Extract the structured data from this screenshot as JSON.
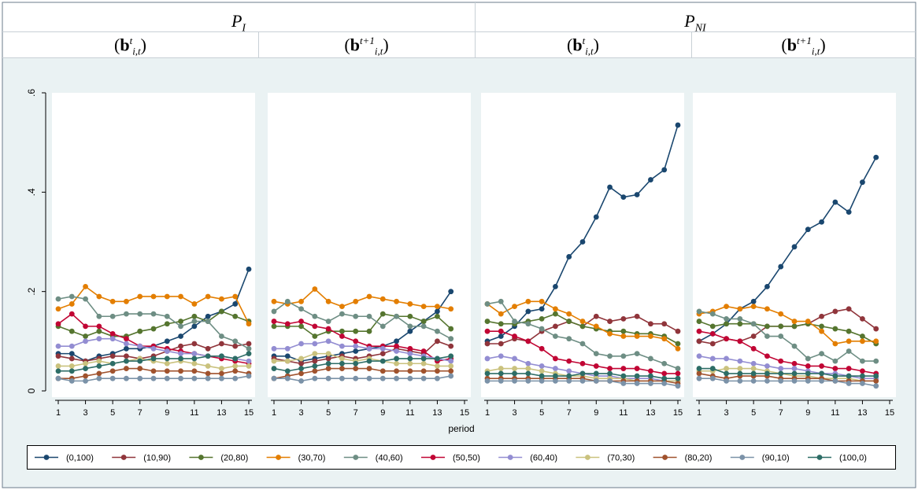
{
  "headers": {
    "groups": [
      {
        "main": "P",
        "sub": "I"
      },
      {
        "main": "P",
        "sub": "NI"
      }
    ],
    "panels": [
      {
        "sup": "t",
        "sub": "i,t"
      },
      {
        "sup": "t+1",
        "sub": "i,t"
      },
      {
        "sup": "t",
        "sub": "i,t"
      },
      {
        "sup": "t+1",
        "sub": "i,t"
      }
    ]
  },
  "chart_data": {
    "type": "line",
    "xlabel": "period",
    "ylabel": "",
    "ylim": [
      0,
      0.6
    ],
    "yticks": [
      0,
      0.2,
      0.4,
      0.6
    ],
    "ytick_labels": [
      "0",
      ".2",
      ".4",
      ".6"
    ],
    "xlim": [
      1,
      15
    ],
    "xticks": [
      1,
      3,
      5,
      7,
      9,
      11,
      13,
      15
    ],
    "legend_position": "bottom",
    "series_names": [
      "(0,100)",
      "(10,90)",
      "(20,80)",
      "(30,70)",
      "(40,60)",
      "(50,50)",
      "(60,40)",
      "(70,30)",
      "(80,20)",
      "(90,10)",
      "(100,0)"
    ],
    "series_colors": [
      "#1a476f",
      "#90353b",
      "#55752f",
      "#e37e00",
      "#6e8e84",
      "#c10534",
      "#938dd2",
      "#cac27e",
      "#a0522d",
      "#7b92a8",
      "#2d6d66"
    ],
    "panels": [
      {
        "name": "P_I (b^t_{i,t})",
        "series": [
          {
            "name": "(0,100)",
            "values": [
              0.075,
              0.075,
              0.06,
              0.07,
              0.075,
              0.085,
              0.085,
              0.09,
              0.1,
              0.11,
              0.13,
              0.15,
              0.16,
              0.175,
              0.245
            ]
          },
          {
            "name": "(10,90)",
            "values": [
              0.07,
              0.065,
              0.06,
              0.065,
              0.07,
              0.07,
              0.065,
              0.07,
              0.08,
              0.09,
              0.095,
              0.085,
              0.095,
              0.09,
              0.095
            ]
          },
          {
            "name": "(20,80)",
            "values": [
              0.13,
              0.12,
              0.11,
              0.12,
              0.11,
              0.11,
              0.12,
              0.125,
              0.135,
              0.14,
              0.15,
              0.14,
              0.16,
              0.15,
              0.14
            ]
          },
          {
            "name": "(30,70)",
            "values": [
              0.165,
              0.175,
              0.21,
              0.19,
              0.18,
              0.18,
              0.19,
              0.19,
              0.19,
              0.19,
              0.175,
              0.19,
              0.185,
              0.19,
              0.135
            ]
          },
          {
            "name": "(40,60)",
            "values": [
              0.185,
              0.19,
              0.185,
              0.15,
              0.15,
              0.155,
              0.155,
              0.155,
              0.15,
              0.13,
              0.14,
              0.14,
              0.11,
              0.1,
              0.085
            ]
          },
          {
            "name": "(50,50)",
            "values": [
              0.135,
              0.155,
              0.13,
              0.13,
              0.115,
              0.105,
              0.09,
              0.09,
              0.085,
              0.08,
              0.075,
              0.07,
              0.065,
              0.06,
              0.055
            ]
          },
          {
            "name": "(60,40)",
            "values": [
              0.09,
              0.09,
              0.1,
              0.105,
              0.105,
              0.095,
              0.09,
              0.085,
              0.08,
              0.075,
              0.075,
              0.07,
              0.07,
              0.065,
              0.06
            ]
          },
          {
            "name": "(70,30)",
            "values": [
              0.05,
              0.05,
              0.055,
              0.06,
              0.055,
              0.06,
              0.065,
              0.06,
              0.055,
              0.06,
              0.055,
              0.05,
              0.045,
              0.05,
              0.05
            ]
          },
          {
            "name": "(80,20)",
            "values": [
              0.025,
              0.025,
              0.03,
              0.035,
              0.04,
              0.045,
              0.045,
              0.04,
              0.04,
              0.04,
              0.04,
              0.035,
              0.035,
              0.04,
              0.035
            ]
          },
          {
            "name": "(90,10)",
            "values": [
              0.025,
              0.02,
              0.02,
              0.025,
              0.025,
              0.025,
              0.025,
              0.025,
              0.025,
              0.025,
              0.025,
              0.025,
              0.025,
              0.025,
              0.03
            ]
          },
          {
            "name": "(100,0)",
            "values": [
              0.04,
              0.04,
              0.045,
              0.05,
              0.055,
              0.06,
              0.06,
              0.065,
              0.065,
              0.065,
              0.065,
              0.07,
              0.07,
              0.065,
              0.075
            ]
          }
        ]
      },
      {
        "name": "P_I (b^{t+1}_{i,t})",
        "series": [
          {
            "name": "(0,100)",
            "values": [
              0.07,
              0.07,
              0.06,
              0.065,
              0.07,
              0.075,
              0.08,
              0.085,
              0.09,
              0.1,
              0.12,
              0.14,
              0.16,
              0.2
            ]
          },
          {
            "name": "(10,90)",
            "values": [
              0.065,
              0.06,
              0.055,
              0.06,
              0.065,
              0.07,
              0.065,
              0.07,
              0.075,
              0.085,
              0.08,
              0.075,
              0.1,
              0.09
            ]
          },
          {
            "name": "(20,80)",
            "values": [
              0.13,
              0.13,
              0.13,
              0.11,
              0.12,
              0.12,
              0.12,
              0.12,
              0.155,
              0.15,
              0.15,
              0.14,
              0.15,
              0.125
            ]
          },
          {
            "name": "(30,70)",
            "values": [
              0.18,
              0.175,
              0.18,
              0.205,
              0.18,
              0.17,
              0.18,
              0.19,
              0.185,
              0.18,
              0.175,
              0.17,
              0.17,
              0.165
            ]
          },
          {
            "name": "(40,60)",
            "values": [
              0.16,
              0.18,
              0.165,
              0.15,
              0.14,
              0.155,
              0.15,
              0.15,
              0.13,
              0.15,
              0.13,
              0.13,
              0.12,
              0.105
            ]
          },
          {
            "name": "(50,50)",
            "values": [
              0.14,
              0.135,
              0.14,
              0.13,
              0.125,
              0.11,
              0.1,
              0.09,
              0.09,
              0.09,
              0.085,
              0.08,
              0.06,
              0.065
            ]
          },
          {
            "name": "(60,40)",
            "values": [
              0.085,
              0.085,
              0.095,
              0.095,
              0.1,
              0.09,
              0.09,
              0.085,
              0.085,
              0.08,
              0.075,
              0.07,
              0.065,
              0.06
            ]
          },
          {
            "name": "(70,30)",
            "values": [
              0.06,
              0.06,
              0.065,
              0.075,
              0.075,
              0.065,
              0.06,
              0.065,
              0.06,
              0.055,
              0.055,
              0.055,
              0.05,
              0.05
            ]
          },
          {
            "name": "(80,20)",
            "values": [
              0.025,
              0.03,
              0.035,
              0.04,
              0.045,
              0.045,
              0.045,
              0.045,
              0.04,
              0.04,
              0.04,
              0.04,
              0.04,
              0.04
            ]
          },
          {
            "name": "(90,10)",
            "values": [
              0.025,
              0.025,
              0.02,
              0.025,
              0.025,
              0.025,
              0.025,
              0.025,
              0.025,
              0.025,
              0.025,
              0.025,
              0.025,
              0.03
            ]
          },
          {
            "name": "(100,0)",
            "values": [
              0.045,
              0.04,
              0.045,
              0.05,
              0.055,
              0.055,
              0.055,
              0.06,
              0.06,
              0.065,
              0.065,
              0.065,
              0.065,
              0.07
            ]
          }
        ]
      },
      {
        "name": "P_NI (b^t_{i,t})",
        "series": [
          {
            "name": "(0,100)",
            "values": [
              0.1,
              0.11,
              0.13,
              0.16,
              0.165,
              0.21,
              0.27,
              0.3,
              0.35,
              0.41,
              0.39,
              0.395,
              0.425,
              0.445,
              0.535
            ]
          },
          {
            "name": "(10,90)",
            "values": [
              0.095,
              0.095,
              0.105,
              0.1,
              0.12,
              0.13,
              0.14,
              0.13,
              0.15,
              0.14,
              0.145,
              0.15,
              0.135,
              0.135,
              0.12
            ]
          },
          {
            "name": "(20,80)",
            "values": [
              0.14,
              0.135,
              0.135,
              0.14,
              0.145,
              0.155,
              0.14,
              0.13,
              0.125,
              0.12,
              0.12,
              0.115,
              0.115,
              0.11,
              0.095
            ]
          },
          {
            "name": "(30,70)",
            "values": [
              0.175,
              0.155,
              0.17,
              0.18,
              0.18,
              0.165,
              0.155,
              0.14,
              0.13,
              0.115,
              0.11,
              0.11,
              0.11,
              0.105,
              0.085
            ]
          },
          {
            "name": "(40,60)",
            "values": [
              0.175,
              0.18,
              0.14,
              0.135,
              0.125,
              0.11,
              0.105,
              0.095,
              0.075,
              0.07,
              0.07,
              0.075,
              0.065,
              0.055,
              0.045
            ]
          },
          {
            "name": "(50,50)",
            "values": [
              0.12,
              0.12,
              0.11,
              0.1,
              0.085,
              0.065,
              0.06,
              0.055,
              0.05,
              0.045,
              0.045,
              0.045,
              0.04,
              0.035,
              0.035
            ]
          },
          {
            "name": "(60,40)",
            "values": [
              0.065,
              0.07,
              0.065,
              0.055,
              0.05,
              0.045,
              0.04,
              0.035,
              0.03,
              0.03,
              0.025,
              0.025,
              0.025,
              0.02,
              0.02
            ]
          },
          {
            "name": "(70,30)",
            "values": [
              0.04,
              0.045,
              0.045,
              0.045,
              0.04,
              0.035,
              0.03,
              0.03,
              0.025,
              0.025,
              0.025,
              0.02,
              0.02,
              0.02,
              0.02
            ]
          },
          {
            "name": "(80,20)",
            "values": [
              0.025,
              0.025,
              0.025,
              0.025,
              0.025,
              0.025,
              0.025,
              0.025,
              0.02,
              0.02,
              0.02,
              0.02,
              0.02,
              0.02,
              0.015
            ]
          },
          {
            "name": "(90,10)",
            "values": [
              0.02,
              0.02,
              0.02,
              0.02,
              0.02,
              0.02,
              0.02,
              0.02,
              0.02,
              0.02,
              0.015,
              0.015,
              0.015,
              0.015,
              0.01
            ]
          },
          {
            "name": "(100,0)",
            "values": [
              0.035,
              0.035,
              0.035,
              0.035,
              0.03,
              0.03,
              0.03,
              0.035,
              0.035,
              0.035,
              0.03,
              0.03,
              0.03,
              0.025,
              0.025
            ]
          }
        ]
      },
      {
        "name": "P_NI (b^{t+1}_{i,t})",
        "series": [
          {
            "name": "(0,100)",
            "values": [
              0.1,
              0.115,
              0.135,
              0.165,
              0.18,
              0.21,
              0.25,
              0.29,
              0.325,
              0.34,
              0.38,
              0.36,
              0.42,
              0.47
            ]
          },
          {
            "name": "(10,90)",
            "values": [
              0.1,
              0.095,
              0.105,
              0.1,
              0.11,
              0.13,
              0.13,
              0.13,
              0.135,
              0.15,
              0.16,
              0.165,
              0.145,
              0.125
            ]
          },
          {
            "name": "(20,80)",
            "values": [
              0.14,
              0.13,
              0.135,
              0.135,
              0.135,
              0.13,
              0.13,
              0.13,
              0.135,
              0.13,
              0.125,
              0.12,
              0.11,
              0.095
            ]
          },
          {
            "name": "(30,70)",
            "values": [
              0.155,
              0.16,
              0.17,
              0.165,
              0.17,
              0.165,
              0.155,
              0.14,
              0.14,
              0.12,
              0.095,
              0.1,
              0.1,
              0.1
            ]
          },
          {
            "name": "(40,60)",
            "values": [
              0.16,
              0.155,
              0.145,
              0.145,
              0.135,
              0.11,
              0.11,
              0.09,
              0.065,
              0.075,
              0.06,
              0.08,
              0.06,
              0.06
            ]
          },
          {
            "name": "(50,50)",
            "values": [
              0.12,
              0.115,
              0.105,
              0.1,
              0.085,
              0.07,
              0.06,
              0.055,
              0.05,
              0.05,
              0.045,
              0.045,
              0.04,
              0.035
            ]
          },
          {
            "name": "(60,40)",
            "values": [
              0.07,
              0.065,
              0.065,
              0.06,
              0.055,
              0.05,
              0.045,
              0.045,
              0.04,
              0.035,
              0.035,
              0.03,
              0.025,
              0.025
            ]
          },
          {
            "name": "(70,30)",
            "values": [
              0.04,
              0.04,
              0.045,
              0.045,
              0.045,
              0.04,
              0.035,
              0.03,
              0.03,
              0.025,
              0.025,
              0.025,
              0.02,
              0.02
            ]
          },
          {
            "name": "(80,20)",
            "values": [
              0.035,
              0.03,
              0.025,
              0.03,
              0.03,
              0.03,
              0.025,
              0.025,
              0.025,
              0.025,
              0.02,
              0.02,
              0.02,
              0.02
            ]
          },
          {
            "name": "(90,10)",
            "values": [
              0.025,
              0.025,
              0.02,
              0.02,
              0.02,
              0.02,
              0.02,
              0.02,
              0.02,
              0.02,
              0.02,
              0.015,
              0.015,
              0.01
            ]
          },
          {
            "name": "(100,0)",
            "values": [
              0.045,
              0.045,
              0.035,
              0.035,
              0.035,
              0.035,
              0.035,
              0.035,
              0.035,
              0.035,
              0.03,
              0.03,
              0.03,
              0.03
            ]
          }
        ]
      }
    ]
  }
}
